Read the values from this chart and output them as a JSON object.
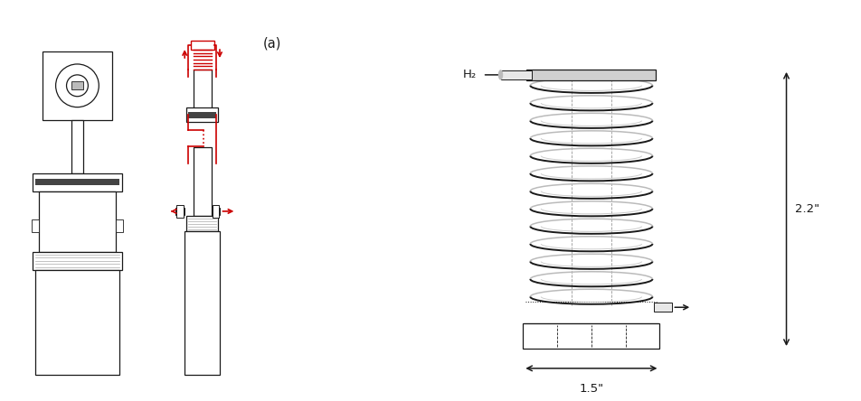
{
  "bg_color": "#ffffff",
  "line_color": "#1a1a1a",
  "red_color": "#cc0000",
  "gray_light": "#cccccc",
  "gray_med": "#888888",
  "gray_dark": "#444444",
  "label_a": "(a)",
  "label_h2": "H₂",
  "label_22": "2.2\"",
  "label_15": "1.5\"",
  "figsize": [
    9.53,
    4.44
  ],
  "dpi": 100
}
